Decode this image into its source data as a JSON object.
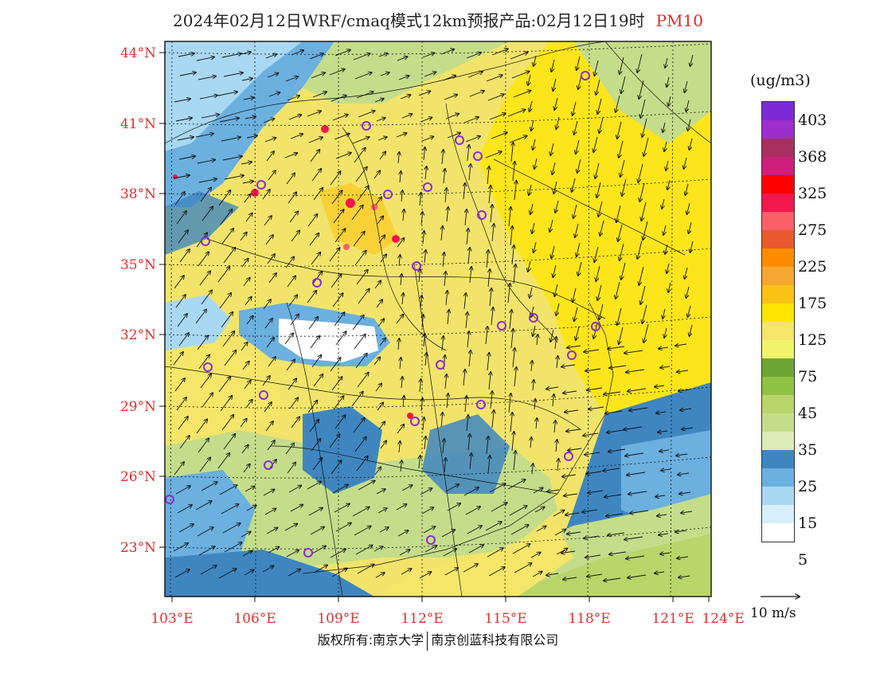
{
  "title": {
    "main": "2024年02月12日WRF/cmaq模式12km预报产品:02月12日19时",
    "variable": "PM10"
  },
  "axes": {
    "lat_labels": [
      "44°N",
      "41°N",
      "38°N",
      "35°N",
      "32°N",
      "29°N",
      "26°N",
      "23°N"
    ],
    "lon_labels": [
      "103°E",
      "106°E",
      "109°E",
      "112°E",
      "115°E",
      "118°E",
      "121°E",
      "124°E"
    ],
    "lat_values": [
      44,
      41,
      38,
      35,
      32,
      29,
      26,
      23
    ],
    "lon_values": [
      103,
      106,
      109,
      112,
      115,
      118,
      121,
      124
    ]
  },
  "legend": {
    "unit": "(ug/m3)",
    "swatches": [
      "#7c2ad6",
      "#9b2ecc",
      "#a83060",
      "#cf1f7c",
      "#ff0000",
      "#f2174c",
      "#fb6068",
      "#e85a2d",
      "#ff8c00",
      "#f4a630",
      "#fbc415",
      "#ffe600",
      "#f5e66a",
      "#eef56a",
      "#6ca534",
      "#8fc244",
      "#b9d66a",
      "#c4dd8a",
      "#dcecb8",
      "#3f86c1",
      "#6bb0df",
      "#a9d8f2",
      "#d6effb",
      "#ffffff"
    ],
    "ticks": [
      "403",
      "368",
      "325",
      "275",
      "225",
      "175",
      "125",
      "75",
      "45",
      "35",
      "25",
      "15",
      "5"
    ]
  },
  "wind_vector": {
    "label": "10 m/s"
  },
  "footer": {
    "left": "版权所有:南京大学",
    "right": "南京创蓝科技有限公司"
  },
  "sites_color": "#8e2ad6",
  "label_color": "#e03030",
  "map_colors": {
    "base": "#f2e46a",
    "yellow": "#ffe600",
    "pale_yellow": "#f5e66a",
    "light_green": "#c4dd8a",
    "green": "#8fc244",
    "blue": "#3f86c1",
    "light_blue": "#6bb0df",
    "pale_blue": "#a9d8f2",
    "white": "#ffffff",
    "orange": "#fbc415",
    "red": "#f2174c"
  }
}
